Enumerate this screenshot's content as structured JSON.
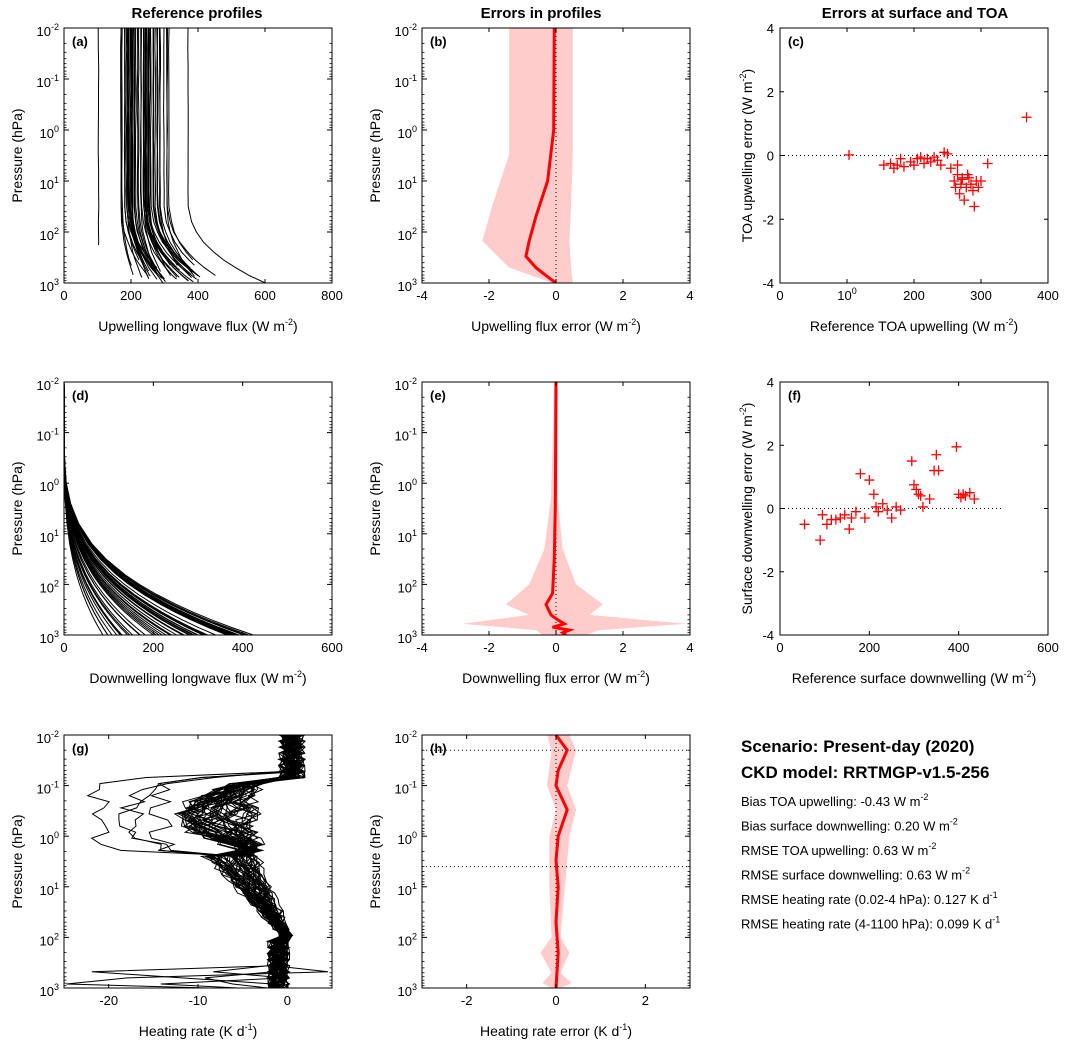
{
  "column_titles": [
    "Reference profiles",
    "Errors in profiles",
    "Errors at surface and TOA"
  ],
  "colors": {
    "profile": "#000000",
    "error": "#ff0000",
    "band": "#ffcccc"
  },
  "summary": {
    "scenario": "Scenario: Present-day (2020)",
    "ckd_model": "CKD model: RRTMGP-v1.5-256",
    "stats": [
      "Bias TOA upwelling: -0.43 W m",
      "Bias surface downwelling: 0.20 W m",
      "RMSE TOA upwelling: 0.63 W m",
      "RMSE surface downwelling: 0.63 W m",
      "RMSE heating rate (0.02-4 hPa):  0.127 K d",
      "RMSE heating rate (4-1100 hPa):  0.099 K d"
    ],
    "stat_exps": [
      "-2",
      "-2",
      "-2",
      "-2",
      "-1",
      "-1"
    ]
  },
  "chart_data": [
    {
      "id": "a",
      "letter": "(a)",
      "type": "line",
      "title": "Reference profiles",
      "xlabel": "Upwelling longwave flux (W m",
      "xlabel_exp": "-2",
      "xlabel_tail": ")",
      "ylabel": "Pressure (hPa)",
      "xlim": [
        0,
        800
      ],
      "xticks": [
        0,
        200,
        400,
        600,
        800
      ],
      "ylim": [
        0.01,
        1000
      ],
      "yscale": "log",
      "yreversed": true,
      "yticks": [
        "10-2",
        "10-1",
        "100",
        "101",
        "102",
        "103"
      ],
      "series_summary": "about 50 near-vertical upwelling profiles, TOA values 100-370",
      "profiles": [
        {
          "top": 103,
          "bottom": 105
        },
        {
          "top": 160,
          "bottom": 230
        },
        {
          "top": 175,
          "bottom": 285
        },
        {
          "top": 190,
          "bottom": 300
        },
        {
          "top": 205,
          "bottom": 320
        },
        {
          "top": 215,
          "bottom": 340
        },
        {
          "top": 225,
          "bottom": 360
        },
        {
          "top": 235,
          "bottom": 380
        },
        {
          "top": 245,
          "bottom": 400
        },
        {
          "top": 255,
          "bottom": 420
        },
        {
          "top": 265,
          "bottom": 440
        },
        {
          "top": 275,
          "bottom": 460
        },
        {
          "top": 285,
          "bottom": 470
        },
        {
          "top": 295,
          "bottom": 480
        },
        {
          "top": 305,
          "bottom": 490
        },
        {
          "top": 370,
          "bottom": 600
        }
      ]
    },
    {
      "id": "b",
      "letter": "(b)",
      "type": "area",
      "title": "Errors in profiles",
      "xlabel": "Upwelling flux error (W m",
      "xlabel_exp": "-2",
      "xlabel_tail": ")",
      "ylabel": "Pressure (hPa)",
      "xlim": [
        -4,
        4
      ],
      "xticks": [
        -4,
        -2,
        0,
        2,
        4
      ],
      "ylim": [
        0.01,
        1000
      ],
      "yscale": "log",
      "yreversed": true,
      "yticks": [
        "10-2",
        "10-1",
        "100",
        "101",
        "102",
        "103"
      ],
      "mean": [
        {
          "p": 0.01,
          "v": -0.05
        },
        {
          "p": 1,
          "v": -0.07
        },
        {
          "p": 10,
          "v": -0.25
        },
        {
          "p": 50,
          "v": -0.6
        },
        {
          "p": 150,
          "v": -0.8
        },
        {
          "p": 300,
          "v": -0.9
        },
        {
          "p": 500,
          "v": -0.6
        },
        {
          "p": 800,
          "v": -0.2
        },
        {
          "p": 1000,
          "v": 0
        }
      ],
      "band": [
        {
          "p": 0.01,
          "lo": -1.4,
          "hi": 0.5
        },
        {
          "p": 3,
          "lo": -1.4,
          "hi": 0.5
        },
        {
          "p": 30,
          "lo": -1.9,
          "hi": 0.45
        },
        {
          "p": 150,
          "lo": -2.2,
          "hi": 0.4
        },
        {
          "p": 500,
          "lo": -1.4,
          "hi": 0.45
        },
        {
          "p": 1000,
          "lo": -0.1,
          "hi": 0.5
        }
      ]
    },
    {
      "id": "c",
      "letter": "(c)",
      "type": "scatter",
      "title": "Errors at surface and TOA",
      "xlabel": "Reference TOA upwelling (W m",
      "xlabel_exp": "-2",
      "xlabel_tail": ")",
      "ylabel": "TOA upwelling error (W m",
      "ylabel_exp": "-2",
      "ylabel_tail": ")",
      "xlim": [
        0,
        400
      ],
      "xticks": [
        0,
        100,
        200,
        300,
        400
      ],
      "ylim": [
        -4,
        4
      ],
      "yticks": [
        -4,
        -2,
        0,
        2,
        4
      ],
      "zero_line_x": [
        0,
        400
      ],
      "points": [
        [
          103,
          0.02
        ],
        [
          155,
          -0.3
        ],
        [
          165,
          -0.25
        ],
        [
          170,
          -0.4
        ],
        [
          175,
          -0.3
        ],
        [
          180,
          -0.1
        ],
        [
          185,
          -0.35
        ],
        [
          195,
          -0.2
        ],
        [
          200,
          -0.3
        ],
        [
          205,
          -0.1
        ],
        [
          210,
          -0.05
        ],
        [
          215,
          -0.25
        ],
        [
          220,
          -0.1
        ],
        [
          225,
          -0.2
        ],
        [
          230,
          -0.05
        ],
        [
          235,
          -0.15
        ],
        [
          240,
          -0.3
        ],
        [
          245,
          0.1
        ],
        [
          250,
          0.05
        ],
        [
          255,
          -0.4
        ],
        [
          260,
          -0.8
        ],
        [
          262,
          -1.0
        ],
        [
          265,
          -0.6
        ],
        [
          268,
          -1.2
        ],
        [
          270,
          -0.9
        ],
        [
          272,
          -0.7
        ],
        [
          275,
          -1.4
        ],
        [
          278,
          -1.0
        ],
        [
          280,
          -0.6
        ],
        [
          285,
          -0.9
        ],
        [
          288,
          -1.1
        ],
        [
          290,
          -1.6
        ],
        [
          293,
          -0.8
        ],
        [
          296,
          -1.0
        ],
        [
          300,
          -0.8
        ],
        [
          310,
          -0.25
        ],
        [
          265,
          -0.3
        ],
        [
          272,
          -0.75
        ],
        [
          282,
          -0.7
        ],
        [
          368,
          1.2
        ]
      ]
    },
    {
      "id": "d",
      "letter": "(d)",
      "type": "line",
      "title": "",
      "xlabel": "Downwelling longwave flux (W m",
      "xlabel_exp": "-2",
      "xlabel_tail": ")",
      "ylabel": "Pressure (hPa)",
      "xlim": [
        0,
        600
      ],
      "xticks": [
        0,
        200,
        400,
        600
      ],
      "ylim": [
        0.01,
        1000
      ],
      "yscale": "log",
      "yreversed": true,
      "yticks": [
        "10-2",
        "10-1",
        "100",
        "101",
        "102",
        "103"
      ],
      "series_summary": "about 50 downwelling profiles from 0 at TOA to 90-440 at surface"
    },
    {
      "id": "e",
      "letter": "(e)",
      "type": "area",
      "title": "",
      "xlabel": "Downwelling flux error (W m",
      "xlabel_exp": "-2",
      "xlabel_tail": ")",
      "ylabel": "Pressure (hPa)",
      "xlim": [
        -4,
        4
      ],
      "xticks": [
        -4,
        -2,
        0,
        2,
        4
      ],
      "ylim": [
        0.01,
        1000
      ],
      "yscale": "log",
      "yreversed": true,
      "yticks": [
        "10-2",
        "10-1",
        "100",
        "101",
        "102",
        "103"
      ],
      "mean": [
        {
          "p": 0.01,
          "v": 0
        },
        {
          "p": 3,
          "v": -0.02
        },
        {
          "p": 30,
          "v": -0.05
        },
        {
          "p": 150,
          "v": -0.1
        },
        {
          "p": 250,
          "v": -0.3
        },
        {
          "p": 400,
          "v": -0.15
        },
        {
          "p": 500,
          "v": 0.05
        },
        {
          "p": 600,
          "v": 0.25
        },
        {
          "p": 700,
          "v": -0.1
        },
        {
          "p": 800,
          "v": 0.4
        },
        {
          "p": 900,
          "v": 0.2
        },
        {
          "p": 1000,
          "v": 0.3
        }
      ],
      "band": [
        {
          "p": 0.01,
          "lo": -0.05,
          "hi": 0.05
        },
        {
          "p": 2,
          "lo": -0.15,
          "hi": 0.05
        },
        {
          "p": 20,
          "lo": -0.35,
          "hi": 0.2
        },
        {
          "p": 100,
          "lo": -0.8,
          "hi": 0.6
        },
        {
          "p": 250,
          "lo": -1.5,
          "hi": 1.4
        },
        {
          "p": 400,
          "lo": -0.8,
          "hi": 1.0
        },
        {
          "p": 600,
          "lo": -2.8,
          "hi": 3.9
        },
        {
          "p": 800,
          "lo": -0.6,
          "hi": 1.3
        },
        {
          "p": 1000,
          "lo": -0.4,
          "hi": 0.9
        }
      ]
    },
    {
      "id": "f",
      "letter": "(f)",
      "type": "scatter",
      "title": "",
      "xlabel": "Reference surface downwelling (W m",
      "xlabel_exp": "-2",
      "xlabel_tail": ")",
      "ylabel": "Surface downwelling error (W m",
      "ylabel_exp": "-2",
      "ylabel_tail": ")",
      "xlim": [
        0,
        600
      ],
      "xticks": [
        0,
        200,
        400,
        600
      ],
      "ylim": [
        -4,
        4
      ],
      "yticks": [
        -4,
        -2,
        0,
        2,
        4
      ],
      "zero_line_x": [
        0,
        500
      ],
      "points": [
        [
          55,
          -0.5
        ],
        [
          90,
          -1.0
        ],
        [
          95,
          -0.2
        ],
        [
          105,
          -0.5
        ],
        [
          115,
          -0.35
        ],
        [
          125,
          -0.35
        ],
        [
          135,
          -0.3
        ],
        [
          145,
          -0.2
        ],
        [
          155,
          -0.65
        ],
        [
          160,
          -0.3
        ],
        [
          170,
          -0.1
        ],
        [
          180,
          1.1
        ],
        [
          190,
          -0.3
        ],
        [
          200,
          0.9
        ],
        [
          210,
          0.45
        ],
        [
          215,
          0.05
        ],
        [
          220,
          -0.1
        ],
        [
          230,
          0.15
        ],
        [
          240,
          -0.05
        ],
        [
          250,
          -0.3
        ],
        [
          260,
          0.05
        ],
        [
          270,
          -0.05
        ],
        [
          295,
          1.5
        ],
        [
          300,
          0.75
        ],
        [
          305,
          0.6
        ],
        [
          310,
          0.45
        ],
        [
          315,
          0.4
        ],
        [
          320,
          0.05
        ],
        [
          335,
          0.3
        ],
        [
          345,
          1.2
        ],
        [
          350,
          1.7
        ],
        [
          355,
          1.2
        ],
        [
          395,
          1.95
        ],
        [
          400,
          0.45
        ],
        [
          405,
          0.35
        ],
        [
          410,
          0.45
        ],
        [
          415,
          0.4
        ],
        [
          425,
          0.5
        ],
        [
          435,
          0.3
        ]
      ]
    },
    {
      "id": "g",
      "letter": "(g)",
      "type": "line",
      "title": "",
      "xlabel": "Heating rate (K d",
      "xlabel_exp": "-1",
      "xlabel_tail": ")",
      "ylabel": "Pressure (hPa)",
      "xlim": [
        -25,
        5
      ],
      "xticks": [
        -20,
        -10,
        0
      ],
      "ylim": [
        0.01,
        1000
      ],
      "yscale": "log",
      "yreversed": true,
      "yticks": [
        "10-2",
        "10-1",
        "100",
        "101",
        "102",
        "103"
      ],
      "series_summary": "about 50 heating rate profiles, mostly between -12 and 3"
    },
    {
      "id": "h",
      "letter": "(h)",
      "type": "area",
      "title": "",
      "xlabel": "Heating rate error (K d",
      "xlabel_exp": "-1",
      "xlabel_tail": ")",
      "ylabel": "Pressure (hPa)",
      "xlim": [
        -3,
        3
      ],
      "xticks": [
        -2,
        0,
        2
      ],
      "ylim": [
        0.01,
        1000
      ],
      "yscale": "log",
      "yreversed": true,
      "yticks": [
        "10-2",
        "10-1",
        "100",
        "101",
        "102",
        "103"
      ],
      "hlines": [
        0.02,
        4
      ],
      "mean": [
        {
          "p": 0.01,
          "v": 0.0
        },
        {
          "p": 0.02,
          "v": 0.25
        },
        {
          "p": 0.05,
          "v": 0.05
        },
        {
          "p": 0.1,
          "v": 0.0
        },
        {
          "p": 0.3,
          "v": 0.25
        },
        {
          "p": 1,
          "v": 0.05
        },
        {
          "p": 3,
          "v": 0.0
        },
        {
          "p": 10,
          "v": 0.05
        },
        {
          "p": 50,
          "v": 0.0
        },
        {
          "p": 200,
          "v": 0.05
        },
        {
          "p": 1000,
          "v": 0.0
        }
      ],
      "band": [
        {
          "p": 0.01,
          "lo": -0.2,
          "hi": 0.3
        },
        {
          "p": 0.02,
          "lo": -0.1,
          "hi": 0.45
        },
        {
          "p": 0.1,
          "lo": -0.2,
          "hi": 0.25
        },
        {
          "p": 0.3,
          "lo": 0.0,
          "hi": 0.45
        },
        {
          "p": 1,
          "lo": -0.15,
          "hi": 0.3
        },
        {
          "p": 10,
          "lo": -0.15,
          "hi": 0.2
        },
        {
          "p": 100,
          "lo": -0.1,
          "hi": 0.1
        },
        {
          "p": 200,
          "lo": -0.35,
          "hi": 0.3
        },
        {
          "p": 500,
          "lo": -0.1,
          "hi": 0.1
        },
        {
          "p": 800,
          "lo": -0.3,
          "hi": 0.35
        },
        {
          "p": 1000,
          "lo": -0.1,
          "hi": 0.1
        }
      ]
    }
  ]
}
